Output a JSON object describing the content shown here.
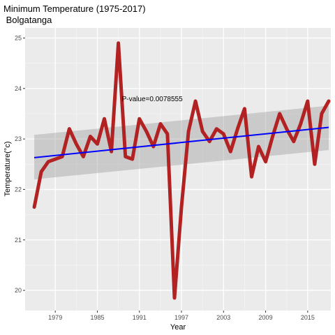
{
  "chart_data": {
    "type": "line",
    "title": "Minimum Temperature (1975-2017)",
    "subtitle": " Bolgatanga",
    "xlabel": "Year",
    "ylabel": "Temperature(°c)",
    "xlim": [
      1974.7,
      2018.3
    ],
    "ylim": [
      19.6,
      25.2
    ],
    "x_ticks": [
      1979,
      1985,
      1991,
      1997,
      2003,
      2009,
      2015
    ],
    "y_ticks": [
      20,
      21,
      22,
      23,
      24,
      25
    ],
    "annotation": "P-value=0.0078555",
    "annotation_pos": {
      "x": 1988.5,
      "y": 23.75
    },
    "series": [
      {
        "color": "#b22222",
        "x": [
          1976,
          1977,
          1978,
          1979,
          1980,
          1981,
          1982,
          1983,
          1984,
          1985,
          1986,
          1987,
          1988,
          1989,
          1990,
          1991,
          1992,
          1993,
          1994,
          1995,
          1996,
          1997,
          1998,
          1999,
          2000,
          2001,
          2002,
          2003,
          2004,
          2005,
          2006,
          2007,
          2008,
          2009,
          2010,
          2011,
          2012,
          2013,
          2014,
          2015,
          2016,
          2017,
          2018
        ],
        "values": [
          21.65,
          22.35,
          22.55,
          22.6,
          22.65,
          23.2,
          22.9,
          22.65,
          23.05,
          22.9,
          23.4,
          22.75,
          24.9,
          22.65,
          22.6,
          23.4,
          23.15,
          22.85,
          23.3,
          23.1,
          19.85,
          21.65,
          23.15,
          23.75,
          23.15,
          22.95,
          23.2,
          23.1,
          22.75,
          23.2,
          23.6,
          22.25,
          22.85,
          22.55,
          23.05,
          23.5,
          23.2,
          22.95,
          23.3,
          23.75,
          22.5,
          23.5,
          23.75
        ]
      }
    ],
    "trend": {
      "color": "#0000ff",
      "x": [
        1976,
        2018
      ],
      "values": [
        22.63,
        23.23
      ],
      "ci_lower": [
        22.2,
        22.78
      ],
      "ci_upper": [
        23.08,
        23.66
      ]
    },
    "grid": true
  }
}
